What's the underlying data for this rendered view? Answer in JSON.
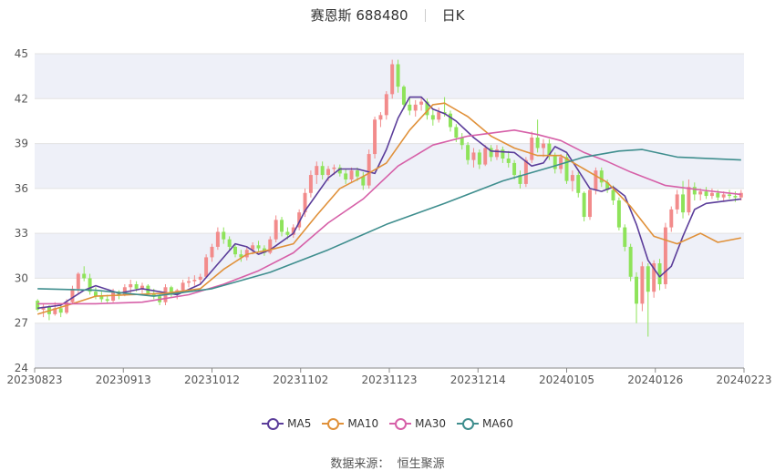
{
  "header": {
    "title": "赛恩斯 688480",
    "period": "日K"
  },
  "legend": [
    {
      "label": "MA5",
      "color": "#5b3d9a"
    },
    {
      "label": "MA10",
      "color": "#e0913a"
    },
    {
      "label": "MA30",
      "color": "#d660a8"
    },
    {
      "label": "MA60",
      "color": "#3f8e8e"
    }
  ],
  "source": {
    "label": "数据来源：",
    "value": "恒生聚源"
  },
  "colors": {
    "up": "#f28b8b",
    "down": "#8ee35a",
    "grid_band": "#eef0f8"
  },
  "chart_data": {
    "type": "candlestick",
    "x_ticks": [
      "20230823",
      "20230913",
      "20231012",
      "20231102",
      "20231123",
      "20231214",
      "20240105",
      "20240126",
      "20240223"
    ],
    "y_ticks": [
      24,
      27,
      30,
      33,
      36,
      39,
      42,
      45
    ],
    "ylim": [
      24,
      45
    ],
    "num_days": 122,
    "ohlc": [
      [
        28.5,
        28.6,
        27.8,
        27.9
      ],
      [
        27.9,
        28.3,
        27.4,
        28.1
      ],
      [
        28.1,
        28.2,
        27.2,
        27.6
      ],
      [
        27.6,
        28.4,
        27.5,
        28.0
      ],
      [
        28.0,
        28.3,
        27.4,
        27.7
      ],
      [
        27.7,
        28.6,
        27.6,
        28.4
      ],
      [
        28.4,
        29.5,
        28.3,
        29.3
      ],
      [
        29.3,
        30.4,
        29.0,
        30.3
      ],
      [
        30.3,
        30.8,
        29.8,
        30.0
      ],
      [
        30.0,
        30.3,
        28.9,
        29.1
      ],
      [
        29.1,
        29.4,
        28.6,
        28.8
      ],
      [
        28.8,
        29.1,
        28.4,
        28.6
      ],
      [
        28.6,
        28.9,
        28.3,
        28.5
      ],
      [
        28.5,
        29.3,
        28.4,
        29.1
      ],
      [
        29.1,
        29.2,
        28.6,
        28.9
      ],
      [
        28.9,
        29.6,
        28.8,
        29.4
      ],
      [
        29.4,
        29.9,
        29.0,
        29.6
      ],
      [
        29.6,
        29.8,
        29.1,
        29.3
      ],
      [
        29.3,
        29.7,
        29.0,
        29.5
      ],
      [
        29.5,
        29.6,
        28.9,
        29.0
      ],
      [
        29.0,
        29.3,
        28.6,
        28.8
      ],
      [
        28.8,
        29.0,
        28.2,
        28.4
      ],
      [
        28.4,
        29.6,
        28.2,
        29.4
      ],
      [
        29.4,
        29.5,
        28.7,
        28.9
      ],
      [
        28.9,
        29.3,
        28.6,
        29.2
      ],
      [
        29.2,
        29.9,
        29.0,
        29.7
      ],
      [
        29.7,
        30.1,
        29.4,
        29.8
      ],
      [
        29.8,
        30.2,
        29.5,
        29.9
      ],
      [
        29.9,
        30.3,
        29.6,
        30.1
      ],
      [
        30.1,
        31.6,
        30.0,
        31.4
      ],
      [
        31.4,
        32.3,
        31.1,
        32.1
      ],
      [
        32.1,
        33.4,
        31.9,
        33.1
      ],
      [
        33.1,
        33.4,
        32.3,
        32.6
      ],
      [
        32.6,
        32.8,
        31.9,
        32.1
      ],
      [
        32.1,
        32.3,
        31.4,
        31.6
      ],
      [
        31.6,
        31.9,
        31.1,
        31.4
      ],
      [
        31.4,
        32.1,
        31.2,
        31.9
      ],
      [
        31.9,
        32.4,
        31.6,
        32.2
      ],
      [
        32.2,
        32.5,
        31.8,
        32.0
      ],
      [
        32.0,
        32.2,
        31.5,
        31.7
      ],
      [
        31.7,
        32.8,
        31.6,
        32.6
      ],
      [
        32.6,
        34.2,
        32.4,
        33.9
      ],
      [
        33.9,
        34.1,
        32.8,
        33.1
      ],
      [
        33.1,
        33.4,
        32.6,
        32.9
      ],
      [
        32.9,
        33.6,
        32.7,
        33.4
      ],
      [
        33.4,
        34.6,
        33.2,
        34.4
      ],
      [
        34.4,
        36.0,
        34.1,
        35.7
      ],
      [
        35.7,
        37.2,
        35.4,
        36.9
      ],
      [
        36.9,
        37.8,
        36.3,
        37.5
      ],
      [
        37.5,
        37.8,
        36.6,
        36.9
      ],
      [
        36.9,
        37.5,
        36.5,
        37.3
      ],
      [
        37.3,
        37.6,
        36.9,
        37.4
      ],
      [
        37.4,
        37.6,
        36.8,
        37.0
      ],
      [
        37.0,
        37.3,
        36.3,
        36.6
      ],
      [
        36.6,
        37.4,
        36.4,
        37.2
      ],
      [
        37.2,
        37.4,
        36.5,
        36.8
      ],
      [
        36.8,
        37.1,
        35.9,
        36.2
      ],
      [
        36.2,
        38.6,
        36.0,
        38.3
      ],
      [
        38.3,
        40.8,
        38.0,
        40.6
      ],
      [
        40.6,
        41.1,
        40.1,
        40.9
      ],
      [
        40.9,
        42.5,
        40.6,
        42.3
      ],
      [
        42.3,
        44.6,
        42.0,
        44.3
      ],
      [
        44.3,
        44.6,
        42.4,
        42.8
      ],
      [
        42.8,
        42.9,
        41.3,
        41.6
      ],
      [
        41.6,
        42.1,
        40.9,
        41.2
      ],
      [
        41.2,
        41.9,
        40.8,
        41.6
      ],
      [
        41.6,
        42.1,
        41.2,
        41.8
      ],
      [
        41.8,
        42.0,
        40.6,
        40.9
      ],
      [
        40.9,
        41.3,
        40.2,
        40.6
      ],
      [
        40.6,
        41.4,
        40.4,
        41.1
      ],
      [
        41.1,
        42.1,
        40.8,
        41.0
      ],
      [
        41.0,
        41.2,
        39.8,
        40.1
      ],
      [
        40.1,
        40.3,
        39.1,
        39.4
      ],
      [
        39.4,
        39.7,
        38.6,
        38.9
      ],
      [
        38.9,
        39.1,
        37.6,
        37.9
      ],
      [
        37.9,
        38.7,
        37.4,
        38.4
      ],
      [
        38.4,
        38.6,
        37.3,
        37.6
      ],
      [
        37.6,
        38.9,
        37.5,
        38.7
      ],
      [
        38.7,
        38.9,
        37.8,
        38.1
      ],
      [
        38.1,
        38.9,
        37.9,
        38.6
      ],
      [
        38.6,
        38.8,
        37.7,
        38.0
      ],
      [
        38.0,
        38.5,
        37.4,
        37.7
      ],
      [
        37.7,
        37.9,
        36.6,
        36.9
      ],
      [
        36.9,
        37.2,
        36.0,
        36.3
      ],
      [
        36.3,
        38.1,
        36.1,
        37.9
      ],
      [
        37.9,
        39.8,
        37.7,
        39.4
      ],
      [
        39.4,
        40.6,
        38.4,
        38.7
      ],
      [
        38.7,
        39.3,
        38.1,
        39.0
      ],
      [
        39.0,
        39.3,
        37.9,
        38.2
      ],
      [
        38.2,
        38.4,
        37.0,
        37.3
      ],
      [
        37.3,
        38.3,
        37.0,
        38.1
      ],
      [
        38.1,
        38.3,
        36.3,
        36.5
      ],
      [
        36.5,
        37.2,
        35.8,
        36.9
      ],
      [
        36.9,
        37.1,
        35.4,
        35.7
      ],
      [
        35.7,
        35.8,
        33.8,
        34.1
      ],
      [
        34.1,
        36.0,
        33.9,
        35.9
      ],
      [
        35.9,
        37.4,
        35.6,
        37.2
      ],
      [
        37.2,
        37.4,
        36.1,
        36.4
      ],
      [
        36.4,
        36.6,
        35.7,
        35.9
      ],
      [
        35.9,
        36.2,
        34.9,
        35.2
      ],
      [
        35.2,
        35.4,
        33.2,
        33.4
      ],
      [
        33.4,
        33.6,
        31.8,
        32.1
      ],
      [
        32.1,
        32.3,
        29.8,
        30.1
      ],
      [
        30.1,
        30.4,
        27.0,
        28.3
      ],
      [
        28.3,
        31.1,
        27.8,
        30.8
      ],
      [
        30.8,
        31.0,
        26.1,
        29.1
      ],
      [
        29.1,
        31.2,
        28.7,
        31.0
      ],
      [
        31.0,
        31.3,
        29.2,
        29.6
      ],
      [
        29.6,
        33.7,
        29.3,
        33.4
      ],
      [
        33.4,
        34.8,
        33.1,
        34.6
      ],
      [
        34.6,
        35.9,
        34.3,
        35.6
      ],
      [
        35.6,
        36.5,
        34.0,
        34.4
      ],
      [
        34.4,
        36.6,
        34.2,
        36.1
      ],
      [
        36.1,
        36.4,
        35.2,
        35.6
      ],
      [
        35.6,
        36.0,
        35.2,
        35.8
      ],
      [
        35.8,
        36.1,
        35.3,
        35.5
      ],
      [
        35.5,
        36.0,
        35.3,
        35.7
      ],
      [
        35.7,
        35.9,
        35.2,
        35.4
      ],
      [
        35.4,
        35.8,
        35.1,
        35.6
      ],
      [
        35.6,
        35.9,
        35.3,
        35.5
      ],
      [
        35.5,
        35.8,
        35.1,
        35.4
      ],
      [
        35.4,
        35.9,
        35.2,
        35.7
      ]
    ],
    "series": [
      {
        "name": "MA5",
        "points": [
          [
            0,
            28.0
          ],
          [
            4,
            28.2
          ],
          [
            8,
            29.2
          ],
          [
            10,
            29.5
          ],
          [
            14,
            29.0
          ],
          [
            18,
            29.3
          ],
          [
            24,
            28.9
          ],
          [
            28,
            29.6
          ],
          [
            32,
            31.4
          ],
          [
            34,
            32.3
          ],
          [
            36,
            32.1
          ],
          [
            38,
            31.6
          ],
          [
            40,
            31.9
          ],
          [
            44,
            33.0
          ],
          [
            46,
            34.5
          ],
          [
            50,
            36.7
          ],
          [
            52,
            37.3
          ],
          [
            55,
            37.3
          ],
          [
            58,
            37.0
          ],
          [
            60,
            38.6
          ],
          [
            62,
            40.7
          ],
          [
            64,
            42.1
          ],
          [
            66,
            42.1
          ],
          [
            68,
            41.3
          ],
          [
            70,
            41.0
          ],
          [
            72,
            40.5
          ],
          [
            75,
            39.4
          ],
          [
            78,
            38.5
          ],
          [
            82,
            38.4
          ],
          [
            85,
            37.5
          ],
          [
            87,
            37.7
          ],
          [
            89,
            38.8
          ],
          [
            91,
            38.4
          ],
          [
            93,
            37.2
          ],
          [
            95,
            36.0
          ],
          [
            97,
            35.8
          ],
          [
            99,
            36.1
          ],
          [
            101,
            35.5
          ],
          [
            103,
            33.6
          ],
          [
            105,
            31.2
          ],
          [
            107,
            30.1
          ],
          [
            109,
            30.8
          ],
          [
            111,
            32.8
          ],
          [
            113,
            34.6
          ],
          [
            115,
            35.0
          ],
          [
            121,
            35.3
          ]
        ]
      },
      {
        "name": "MA10",
        "points": [
          [
            0,
            27.6
          ],
          [
            6,
            28.3
          ],
          [
            10,
            28.8
          ],
          [
            16,
            28.9
          ],
          [
            22,
            29.0
          ],
          [
            28,
            29.3
          ],
          [
            32,
            30.6
          ],
          [
            36,
            31.6
          ],
          [
            40,
            31.9
          ],
          [
            44,
            32.3
          ],
          [
            48,
            34.2
          ],
          [
            52,
            36.0
          ],
          [
            56,
            36.8
          ],
          [
            60,
            37.7
          ],
          [
            64,
            39.9
          ],
          [
            68,
            41.6
          ],
          [
            70,
            41.7
          ],
          [
            74,
            40.8
          ],
          [
            78,
            39.5
          ],
          [
            82,
            38.7
          ],
          [
            86,
            38.2
          ],
          [
            90,
            38.2
          ],
          [
            94,
            37.3
          ],
          [
            98,
            36.4
          ],
          [
            102,
            34.8
          ],
          [
            106,
            32.8
          ],
          [
            110,
            32.3
          ],
          [
            114,
            33.0
          ],
          [
            117,
            32.4
          ],
          [
            121,
            32.7
          ]
        ]
      },
      {
        "name": "MA30",
        "points": [
          [
            0,
            28.3
          ],
          [
            10,
            28.3
          ],
          [
            18,
            28.4
          ],
          [
            26,
            28.9
          ],
          [
            32,
            29.6
          ],
          [
            38,
            30.5
          ],
          [
            44,
            31.7
          ],
          [
            50,
            33.7
          ],
          [
            56,
            35.3
          ],
          [
            62,
            37.5
          ],
          [
            68,
            38.9
          ],
          [
            74,
            39.5
          ],
          [
            82,
            39.9
          ],
          [
            86,
            39.6
          ],
          [
            90,
            39.2
          ],
          [
            94,
            38.4
          ],
          [
            98,
            37.8
          ],
          [
            102,
            37.1
          ],
          [
            108,
            36.2
          ],
          [
            114,
            35.9
          ],
          [
            121,
            35.6
          ]
        ]
      },
      {
        "name": "MA60",
        "points": [
          [
            0,
            29.3
          ],
          [
            10,
            29.2
          ],
          [
            20,
            28.8
          ],
          [
            30,
            29.3
          ],
          [
            40,
            30.4
          ],
          [
            50,
            31.9
          ],
          [
            60,
            33.6
          ],
          [
            70,
            35.0
          ],
          [
            80,
            36.5
          ],
          [
            88,
            37.4
          ],
          [
            94,
            38.1
          ],
          [
            100,
            38.5
          ],
          [
            104,
            38.6
          ],
          [
            110,
            38.1
          ],
          [
            121,
            37.9
          ]
        ]
      }
    ]
  }
}
